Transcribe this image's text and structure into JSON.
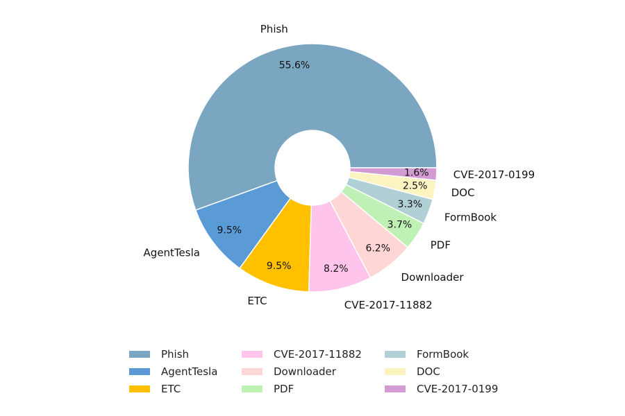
{
  "chart_data": {
    "type": "pie",
    "donut": true,
    "title": "",
    "categories": [
      "Phish",
      "AgentTesla",
      "ETC",
      "CVE-2017-11882",
      "Downloader",
      "PDF",
      "FormBook",
      "DOC",
      "CVE-2017-0199"
    ],
    "values": [
      55.6,
      9.5,
      9.5,
      8.2,
      6.2,
      3.7,
      3.3,
      2.5,
      1.6
    ],
    "value_labels": [
      "55.6%",
      "9.5%",
      "9.5%",
      "8.2%",
      "6.2%",
      "3.7%",
      "3.3%",
      "2.5%",
      "1.6%"
    ],
    "colors": [
      "#7aa6c2",
      "#5b9bd5",
      "#ffc000",
      "#ffc4ec",
      "#ffd6d6",
      "#bff0b4",
      "#b0d0d6",
      "#fbf3c0",
      "#d39bd3"
    ],
    "start_angle_deg": 0,
    "direction": "counterclockwise",
    "legend": {
      "position": "bottom",
      "columns": 3
    }
  }
}
